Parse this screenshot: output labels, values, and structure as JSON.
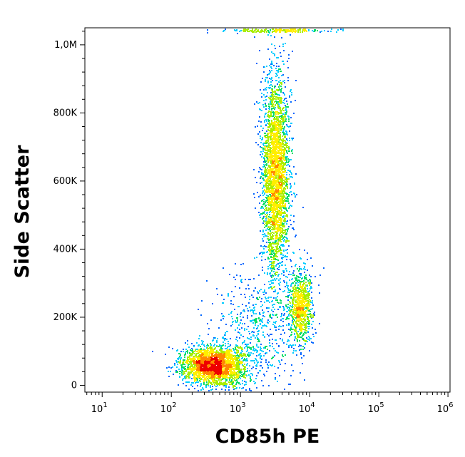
{
  "chart_data": {
    "type": "scatter",
    "title": "",
    "xlabel": "CD85h PE",
    "ylabel": "Side Scatter",
    "x_scale": "log",
    "xlim": [
      10,
      1000000
    ],
    "ylim": [
      0,
      1050000
    ],
    "x_ticks": [
      {
        "value": 10,
        "base": "10",
        "exp": "1"
      },
      {
        "value": 100,
        "base": "10",
        "exp": "2"
      },
      {
        "value": 1000,
        "base": "10",
        "exp": "3"
      },
      {
        "value": 10000,
        "base": "10",
        "exp": "4"
      },
      {
        "value": 100000,
        "base": "10",
        "exp": "5"
      },
      {
        "value": 1000000,
        "base": "10",
        "exp": "6"
      }
    ],
    "y_ticks": [
      {
        "value": 0,
        "label": "0"
      },
      {
        "value": 200000,
        "label": "200K"
      },
      {
        "value": 400000,
        "label": "400K"
      },
      {
        "value": 600000,
        "label": "600K"
      },
      {
        "value": 800000,
        "label": "800K"
      },
      {
        "value": 1000000,
        "label": "1,0M"
      }
    ],
    "density_colormap": [
      "#0000cc",
      "#0066ff",
      "#00ccff",
      "#00dd66",
      "#aaee00",
      "#ffee00",
      "#ff8800",
      "#ee0000"
    ],
    "populations": [
      {
        "x_log10_center": 2.6,
        "y_center": 60000,
        "x_log10_sd": 0.22,
        "y_sd": 28000,
        "count": 2600
      },
      {
        "x_log10_center": 3.5,
        "y_center": 620000,
        "x_log10_sd": 0.1,
        "y_sd": 150000,
        "count": 3000
      },
      {
        "x_log10_center": 3.85,
        "y_center": 230000,
        "x_log10_sd": 0.09,
        "y_sd": 55000,
        "count": 900
      },
      {
        "x_log10_center": 3.2,
        "y_center": 150000,
        "x_log10_sd": 0.3,
        "y_sd": 90000,
        "count": 600
      },
      {
        "x_log10_center": 3.5,
        "y_center": 1045000,
        "x_log10_sd": 0.35,
        "y_sd": 3000,
        "count": 220
      }
    ]
  }
}
